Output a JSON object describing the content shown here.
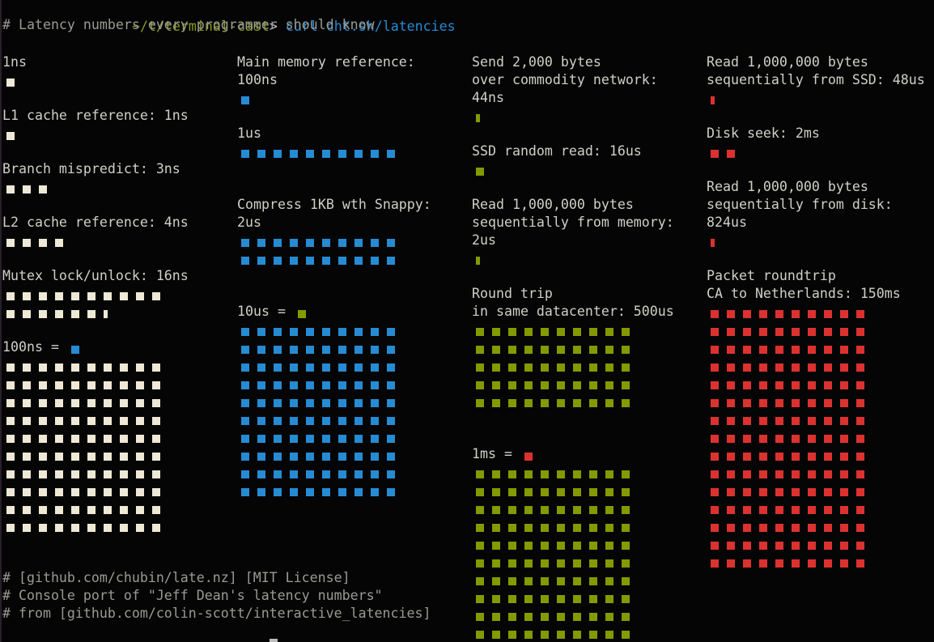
{
  "terminal": {
    "prompt_path": "~/t/terminal-cast",
    "prompt_symbol": ">",
    "command": "curl cht.sh/latencies",
    "header_comment": "# Latency numbers every programmer should know",
    "footer": [
      "# [github.com/chubin/late.nz] [MIT License]",
      "# Console port of \"Jeff Dean's latency numbers\"",
      "# from [github.com/colin-scott/interactive_latencies]"
    ]
  },
  "colors": {
    "ns": "#eee8d5",
    "hundred_ns": "#268bd2",
    "ten_us": "#859900",
    "ms": "#dc322f",
    "background": "#050505"
  },
  "columns": [
    {
      "items": [
        {
          "label": [
            "1ns"
          ],
          "full": 1,
          "partial": 0,
          "color": "cream"
        },
        {
          "label": [
            "L1 cache reference: 1ns"
          ],
          "full": 1,
          "partial": 0,
          "color": "cream"
        },
        {
          "label": [
            "Branch mispredict: 3ns"
          ],
          "full": 3,
          "partial": 0,
          "color": "cream"
        },
        {
          "label": [
            "L2 cache reference: 4ns"
          ],
          "full": 4,
          "partial": 0,
          "color": "cream"
        },
        {
          "label": [
            "Mutex lock/unlock: 16ns"
          ],
          "full": 16,
          "partial": 1,
          "color": "cream"
        }
      ],
      "scale": {
        "label": "100ns =",
        "unit_color": "blue",
        "grid_color": "cream",
        "rows": 10,
        "cols": 10
      }
    },
    {
      "items": [
        {
          "label": [
            "Main memory reference:",
            "100ns"
          ],
          "full": 1,
          "partial": 0,
          "color": "blue"
        },
        {
          "label": [
            "1us"
          ],
          "full": 10,
          "partial": 0,
          "color": "blue"
        },
        {
          "label": [
            "Compress 1KB wth Snappy:",
            "2us"
          ],
          "full": 20,
          "partial": 0,
          "color": "blue"
        }
      ],
      "scale": {
        "label": "10us =",
        "unit_color": "green",
        "grid_color": "blue",
        "rows": 10,
        "cols": 10
      }
    },
    {
      "items": [
        {
          "label": [
            "Send 2,000 bytes",
            "over commodity network:",
            "44ns"
          ],
          "full": 0,
          "partial": 1,
          "color": "green"
        },
        {
          "label": [
            "SSD random read: 16us"
          ],
          "full": 1,
          "partial": 0,
          "color": "green"
        },
        {
          "label": [
            "Read 1,000,000 bytes",
            "sequentially from memory:",
            "2us"
          ],
          "full": 0,
          "partial": 1,
          "color": "green"
        },
        {
          "label": [
            "Round trip",
            "in same datacenter: 500us"
          ],
          "full": 50,
          "partial": 0,
          "color": "green"
        }
      ],
      "scale": {
        "label": "1ms =",
        "unit_color": "red",
        "grid_color": "green",
        "rows": 10,
        "cols": 10
      }
    },
    {
      "items": [
        {
          "label": [
            "Read 1,000,000 bytes",
            "sequentially from SSD: 48us"
          ],
          "full": 0,
          "partial": 1,
          "color": "red"
        },
        {
          "label": [
            "Disk seek: 2ms"
          ],
          "full": 2,
          "partial": 0,
          "color": "red"
        },
        {
          "label": [
            "Read 1,000,000 bytes",
            "sequentially from disk:",
            "824us"
          ],
          "full": 0,
          "partial": 1,
          "color": "red"
        },
        {
          "label": [
            "Packet roundtrip",
            "CA to Netherlands: 150ms"
          ],
          "full": 150,
          "partial": 0,
          "color": "red"
        }
      ]
    }
  ],
  "chart_data": {
    "type": "table",
    "title": "Latency numbers every programmer should know",
    "units": {
      "cream_square": "1ns",
      "blue_square": "100ns",
      "green_square": "10us",
      "red_square": "1ms"
    },
    "rows": [
      {
        "operation": "L1 cache reference",
        "latency": "1ns"
      },
      {
        "operation": "Branch mispredict",
        "latency": "3ns"
      },
      {
        "operation": "L2 cache reference",
        "latency": "4ns"
      },
      {
        "operation": "Mutex lock/unlock",
        "latency": "16ns"
      },
      {
        "operation": "Main memory reference",
        "latency": "100ns"
      },
      {
        "operation": "Compress 1KB wth Snappy",
        "latency": "2us"
      },
      {
        "operation": "Send 2,000 bytes over commodity network",
        "latency": "44ns"
      },
      {
        "operation": "SSD random read",
        "latency": "16us"
      },
      {
        "operation": "Read 1,000,000 bytes sequentially from memory",
        "latency": "2us"
      },
      {
        "operation": "Round trip in same datacenter",
        "latency": "500us"
      },
      {
        "operation": "Read 1,000,000 bytes sequentially from SSD",
        "latency": "48us"
      },
      {
        "operation": "Disk seek",
        "latency": "2ms"
      },
      {
        "operation": "Read 1,000,000 bytes sequentially from disk",
        "latency": "824us"
      },
      {
        "operation": "Packet roundtrip CA to Netherlands",
        "latency": "150ms"
      }
    ]
  }
}
